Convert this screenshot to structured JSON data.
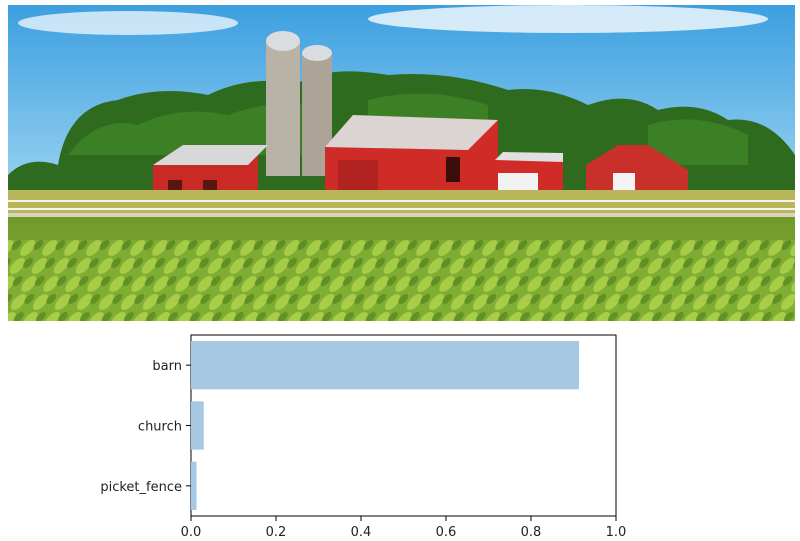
{
  "photo": {
    "alt": ""
  },
  "chart_data": {
    "type": "bar",
    "orientation": "horizontal",
    "categories": [
      "barn",
      "church",
      "picket_fence"
    ],
    "values": [
      0.913,
      0.03,
      0.013
    ],
    "title": "",
    "xlabel": "",
    "ylabel": "",
    "xlim": [
      0,
      1.0
    ],
    "xticks": [
      "0.0",
      "0.2",
      "0.4",
      "0.6",
      "0.8",
      "1.0"
    ],
    "grid": false,
    "bar_color": "#a6c8e3"
  }
}
